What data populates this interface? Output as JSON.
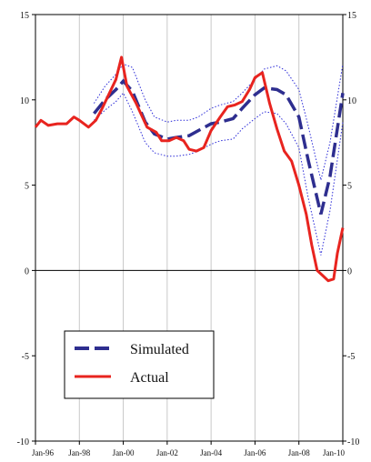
{
  "chart_data": {
    "type": "line",
    "title": "",
    "xlabel": "",
    "ylabel": "",
    "ylim": [
      -10,
      15
    ],
    "xlim": [
      "1996-01",
      "2010-01"
    ],
    "yticks": [
      -10,
      -5,
      0,
      5,
      10,
      15
    ],
    "ytick_labels": [
      "-10",
      "-5",
      "0",
      "5",
      "10",
      "15"
    ],
    "xtick_labels": [
      "Jan-96",
      "Jan-98",
      "Jan-00",
      "Jan-02",
      "Jan-04",
      "Jan-06",
      "Jan-08",
      "Jan-10"
    ],
    "xtick_dates": [
      "1996-01",
      "1998-01",
      "2000-01",
      "2002-01",
      "2004-01",
      "2006-01",
      "2008-01",
      "2010-01"
    ],
    "grid": "vertical",
    "legend": "bottom-left",
    "colors": {
      "simulated": "#2e2e8f",
      "actual": "#e8241f",
      "band": "#2b2bd8"
    },
    "legend_entries": [
      "Simulated",
      "Actual"
    ],
    "series": [
      {
        "name": "Simulated",
        "style": "dashed",
        "x": [
          "1998-09",
          "1999-03",
          "1999-09",
          "2000-01",
          "2000-06",
          "2001-01",
          "2001-06",
          "2002-01",
          "2002-06",
          "2003-01",
          "2003-06",
          "2004-01",
          "2004-06",
          "2005-01",
          "2005-06",
          "2006-01",
          "2006-06",
          "2007-01",
          "2007-06",
          "2008-01",
          "2008-06",
          "2009-01",
          "2009-06",
          "2010-01"
        ],
        "values": [
          9.2,
          10.0,
          10.6,
          11.1,
          10.5,
          8.7,
          8.0,
          7.7,
          7.8,
          7.9,
          8.2,
          8.6,
          8.7,
          8.9,
          9.5,
          10.3,
          10.7,
          10.6,
          10.3,
          9.0,
          6.5,
          3.3,
          5.5,
          10.4
        ]
      },
      {
        "name": "Actual",
        "style": "solid",
        "x": [
          "1996-01",
          "1996-04",
          "1996-08",
          "1997-01",
          "1997-06",
          "1997-10",
          "1998-01",
          "1998-06",
          "1998-10",
          "1999-01",
          "1999-05",
          "1999-09",
          "1999-12",
          "2000-03",
          "2000-08",
          "2001-02",
          "2001-07",
          "2001-10",
          "2002-02",
          "2002-06",
          "2002-10",
          "2003-01",
          "2003-05",
          "2003-09",
          "2004-01",
          "2004-06",
          "2004-10",
          "2005-02",
          "2005-06",
          "2005-10",
          "2006-01",
          "2006-05",
          "2006-09",
          "2007-01",
          "2007-05",
          "2007-09",
          "2008-01",
          "2008-05",
          "2008-08",
          "2008-11",
          "2009-02",
          "2009-05",
          "2009-08",
          "2009-10",
          "2010-01"
        ],
        "values": [
          8.4,
          8.8,
          8.5,
          8.6,
          8.6,
          9.0,
          8.8,
          8.4,
          8.8,
          9.4,
          10.3,
          11.2,
          12.5,
          10.8,
          9.8,
          8.4,
          8.1,
          7.6,
          7.6,
          7.8,
          7.6,
          7.1,
          7.0,
          7.2,
          8.2,
          9.0,
          9.6,
          9.7,
          9.9,
          10.6,
          11.3,
          11.6,
          9.8,
          8.3,
          7.0,
          6.4,
          5.0,
          3.3,
          1.5,
          0.0,
          -0.3,
          -0.6,
          -0.5,
          1.0,
          2.5
        ]
      }
    ],
    "bands": [
      {
        "role": "upper",
        "x": [
          "1998-09",
          "1999-03",
          "1999-09",
          "2000-01",
          "2000-06",
          "2001-01",
          "2001-06",
          "2002-01",
          "2002-06",
          "2003-01",
          "2003-06",
          "2004-01",
          "2004-06",
          "2005-01",
          "2005-06",
          "2006-01",
          "2006-06",
          "2007-01",
          "2007-06",
          "2008-01",
          "2008-06",
          "2009-01",
          "2009-06",
          "2010-01"
        ],
        "values": [
          9.8,
          10.8,
          11.5,
          12.1,
          11.9,
          10.0,
          9.0,
          8.7,
          8.8,
          8.8,
          9.0,
          9.5,
          9.7,
          9.9,
          10.4,
          11.2,
          11.8,
          12.0,
          11.7,
          10.6,
          8.5,
          5.3,
          7.5,
          12.1
        ]
      },
      {
        "role": "lower",
        "x": [
          "1998-09",
          "1999-03",
          "1999-09",
          "2000-01",
          "2000-06",
          "2001-01",
          "2001-06",
          "2002-01",
          "2002-06",
          "2003-01",
          "2003-06",
          "2004-01",
          "2004-06",
          "2005-01",
          "2005-06",
          "2006-01",
          "2006-06",
          "2007-01",
          "2007-06",
          "2008-01",
          "2008-06",
          "2009-01",
          "2009-06",
          "2010-01"
        ],
        "values": [
          8.8,
          9.4,
          9.9,
          10.4,
          9.3,
          7.5,
          6.9,
          6.7,
          6.7,
          6.8,
          7.0,
          7.4,
          7.6,
          7.7,
          8.3,
          8.9,
          9.3,
          9.2,
          8.6,
          7.2,
          4.3,
          0.9,
          3.5,
          8.7
        ]
      }
    ]
  }
}
